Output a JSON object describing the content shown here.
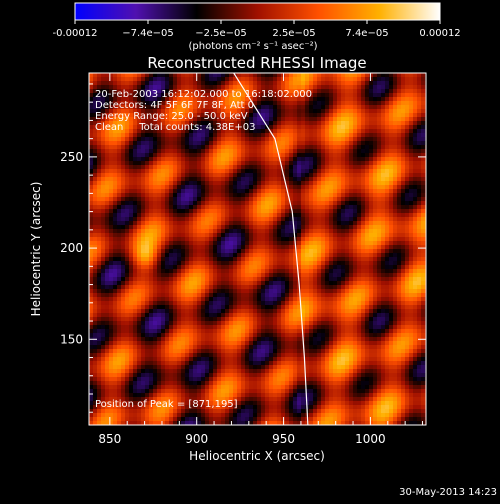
{
  "chart_data": {
    "type": "heatmap",
    "title": "Reconstructed RHESSI Image",
    "xlabel": "Heliocentric X (arcsec)",
    "ylabel": "Heliocentric Y (arcsec)",
    "xlim": [
      838,
      1032
    ],
    "ylim": [
      103,
      296
    ],
    "x_ticks": [
      850,
      900,
      950,
      1000
    ],
    "y_ticks": [
      150,
      200,
      250
    ],
    "colorbar": {
      "range": [
        -0.00012,
        0.00012
      ],
      "tick_labels": [
        "-0.00012",
        "−7.4e−05",
        "−2.5e−05",
        "2.5e−05",
        "7.4e−05",
        "0.00012"
      ],
      "unit_label": "(photons cm⁻² s⁻¹ asec⁻²)",
      "colors": [
        "#0000ff",
        "#5010b0",
        "#000000",
        "#a01000",
        "#ff5000",
        "#ffb000",
        "#ffffff"
      ]
    },
    "annotations": [
      "20-Feb-2003 16:12:02.000 to 16:18:02.000",
      "Detectors: 4F 5F 6F 7F 8F, Att 0",
      "Energy Range: 25.0 - 50.0 keV",
      "Clean     Total counts: 4.38E+03"
    ],
    "peak": {
      "label": "Position of Peak = [871,195]",
      "x": 871,
      "y": 195
    },
    "limb_curve": [
      [
        920,
        298
      ],
      [
        945,
        260
      ],
      [
        955,
        220
      ],
      [
        959,
        180
      ],
      [
        962,
        140
      ],
      [
        964,
        103
      ]
    ]
  },
  "footer": {
    "date": "30-May-2013 14:23"
  }
}
